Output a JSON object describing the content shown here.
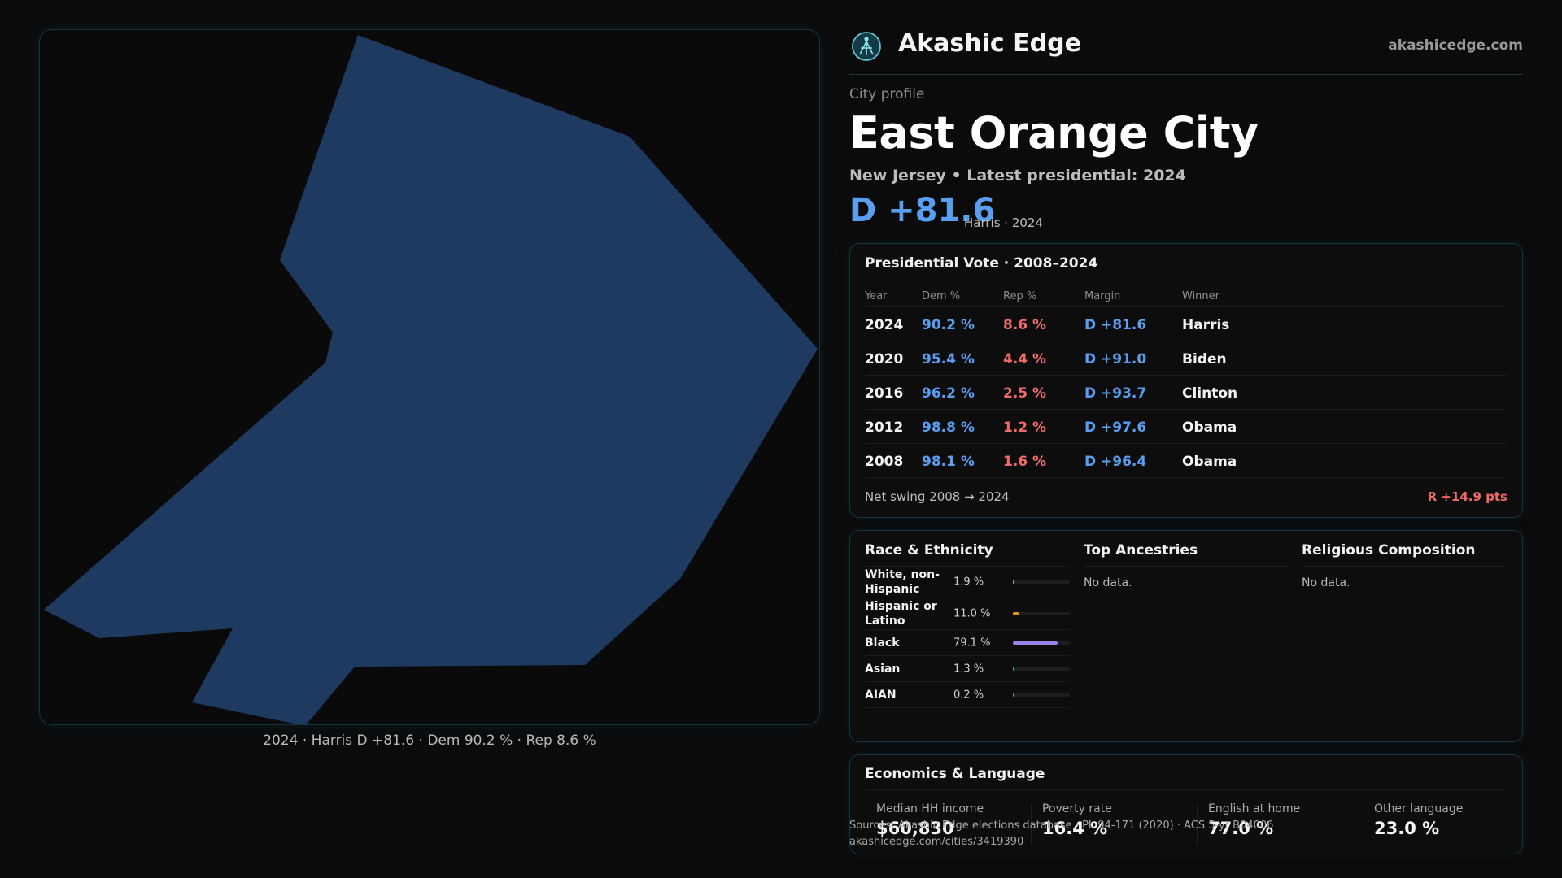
{
  "brand": {
    "name": "Akashic Edge",
    "url": "akashicedge.com"
  },
  "profile": {
    "eyebrow": "City profile",
    "city": "East Orange City",
    "subtitle": "New Jersey • Latest presidential: 2024",
    "margin": "D +81.6",
    "margin_note": "Harris · 2024"
  },
  "map": {
    "fill_color": "#1f3a60",
    "caption": "2024 · Harris D +81.6 · Dem 90.2 % · Rep 8.6 %"
  },
  "vote": {
    "title": "Presidential Vote · 2008–2024",
    "headers": {
      "year": "Year",
      "dem": "Dem %",
      "rep": "Rep %",
      "margin": "Margin",
      "winner": "Winner"
    },
    "rows": [
      {
        "year": "2024",
        "dem": "90.2 %",
        "rep": "8.6 %",
        "margin": "D +81.6",
        "winner": "Harris"
      },
      {
        "year": "2020",
        "dem": "95.4 %",
        "rep": "4.4 %",
        "margin": "D +91.0",
        "winner": "Biden"
      },
      {
        "year": "2016",
        "dem": "96.2 %",
        "rep": "2.5 %",
        "margin": "D +93.7",
        "winner": "Clinton"
      },
      {
        "year": "2012",
        "dem": "98.8 %",
        "rep": "1.2 %",
        "margin": "D +97.6",
        "winner": "Obama"
      },
      {
        "year": "2008",
        "dem": "98.1 %",
        "rep": "1.6 %",
        "margin": "D +96.4",
        "winner": "Obama"
      }
    ],
    "swing_label": "Net swing 2008 → 2024",
    "swing_value": "R +14.9 pts"
  },
  "race": {
    "title": "Race & Ethnicity",
    "rows": [
      {
        "label": "White, non-Hispanic",
        "pct": "1.9 %",
        "fraction": 0.019,
        "color": "#b0b0b0"
      },
      {
        "label": "Hispanic or Latino",
        "pct": "11.0 %",
        "fraction": 0.11,
        "color": "#e0961f"
      },
      {
        "label": "Black",
        "pct": "79.1 %",
        "fraction": 0.791,
        "color": "#9b80e6"
      },
      {
        "label": "Asian",
        "pct": "1.3 %",
        "fraction": 0.013,
        "color": "#3fb68a"
      },
      {
        "label": "AIAN",
        "pct": "0.2 %",
        "fraction": 0.002,
        "color": "#c07a4a"
      }
    ]
  },
  "ancestries": {
    "title": "Top Ancestries",
    "empty": "No data."
  },
  "religion": {
    "title": "Religious Composition",
    "empty": "No data."
  },
  "economics": {
    "title": "Economics & Language",
    "stats": [
      {
        "label": "Median HH income",
        "value": "$60,830"
      },
      {
        "label": "Poverty rate",
        "value": "16.4 %"
      },
      {
        "label": "English at home",
        "value": "77.0 %"
      },
      {
        "label": "Other language",
        "value": "23.0 %"
      }
    ]
  },
  "footer": {
    "sources": "Sources: Akashic Edge elections database · PL 94-171 (2020) · ACS 5-yr B04006",
    "link": "akashicedge.com/cities/3419390"
  },
  "colors": {
    "dem": "#5a9ef2",
    "rep": "#ef6b6b",
    "accent_border": "#123640"
  }
}
